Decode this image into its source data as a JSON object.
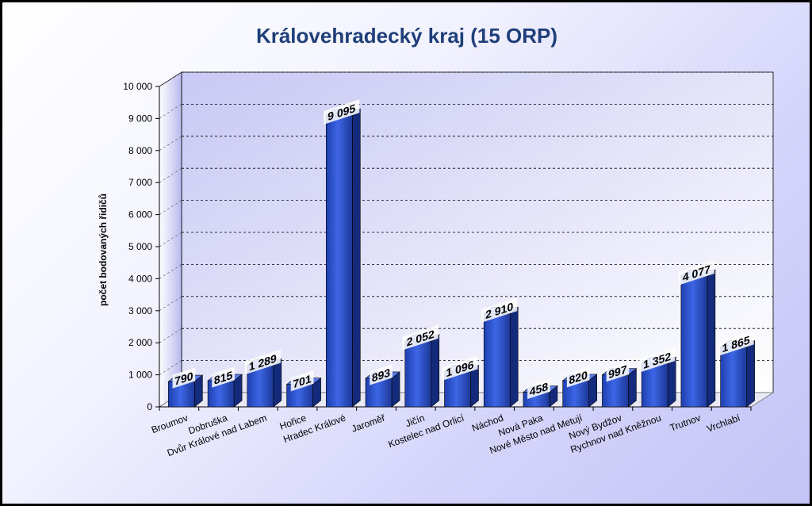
{
  "chart_data": {
    "type": "bar",
    "title": "Královehradecký kraj (15 ORP)",
    "xlabel": "",
    "ylabel": "počet bodovaných řidičů",
    "ylim": [
      0,
      10000
    ],
    "yticks": [
      0,
      1000,
      2000,
      3000,
      4000,
      5000,
      6000,
      7000,
      8000,
      9000,
      10000
    ],
    "ytick_labels": [
      "0",
      "1 000",
      "2 000",
      "3 000",
      "4 000",
      "5 000",
      "6 000",
      "7 000",
      "8 000",
      "9 000",
      "10 000"
    ],
    "grid": true,
    "categories": [
      "Broumov",
      "Dobruška",
      "Dvůr Králové nad Labem",
      "Hořice",
      "Hradec Králové",
      "Jaroměř",
      "Jičín",
      "Kostelec nad Orlicí",
      "Náchod",
      "Nová Paka",
      "Nové Město nad Metují",
      "Nový Bydžov",
      "Rychnov nad Kněžnou",
      "Trutnov",
      "Vrchlabí"
    ],
    "values": [
      790,
      815,
      1289,
      701,
      9095,
      893,
      2052,
      1096,
      2910,
      458,
      820,
      997,
      1352,
      4077,
      1865
    ],
    "value_labels": [
      "790",
      "815",
      "1 289",
      "701",
      "9 095",
      "893",
      "2 052",
      "1 096",
      "2 910",
      "458",
      "820",
      "997",
      "1 352",
      "4 077",
      "1 865"
    ],
    "colors": {
      "bar_front": "#2f55d4",
      "bar_side": "#142a7a",
      "bar_top": "#5a7ae6",
      "title": "#1f3f7a"
    }
  }
}
